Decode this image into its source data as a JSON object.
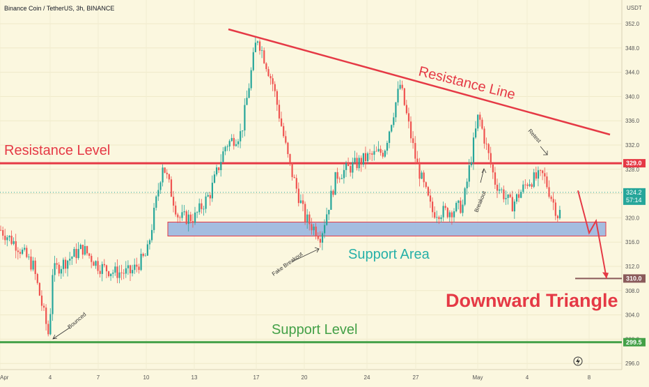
{
  "header": {
    "symbol_line": "Binance Coin / TetherUS, 3h, BINANCE",
    "currency": "USDT"
  },
  "annotations": {
    "resistance_line": "Resistance Line",
    "resistance_level": "Resistance Level",
    "support_area": "Support Area",
    "support_level": "Support Level",
    "downward_triangle": "Downward Triangle",
    "fake_breakout": "Fake Breakout",
    "bounced": "Bounced",
    "breakout": "Breakout",
    "retest": "Retest"
  },
  "price_tags": {
    "resistance": "329.0",
    "current": "324.2",
    "countdown": "57:14",
    "target": "310.0",
    "support": "299.5"
  },
  "footer": {
    "lightning_icon": "lightning-icon"
  },
  "colors": {
    "background": "#fbf7df",
    "up": "#26a69a",
    "down": "#ef5350",
    "resistance": "#e53945",
    "support": "#43a047",
    "support_area_fill": "#9ab6e0",
    "support_area_text": "#26b0a8",
    "target_line": "#8a5a5a"
  },
  "chart_data": {
    "type": "candlestick",
    "title": "Binance Coin / TetherUS, 3h, BINANCE",
    "y_unit": "USDT",
    "ylim": [
      295,
      353
    ],
    "y_ticks": [
      296.0,
      300.0,
      304.0,
      308.0,
      312.0,
      316.0,
      320.0,
      324.0,
      328.0,
      332.0,
      336.0,
      340.0,
      344.0,
      348.0,
      352.0
    ],
    "x_ticks": [
      "Apr",
      "4",
      "7",
      "10",
      "13",
      "17",
      "20",
      "24",
      "27",
      "May",
      "4",
      "8"
    ],
    "grid": true,
    "price_path": [
      {
        "t": "Apr 1",
        "price": 318
      },
      {
        "t": "Apr 2",
        "price": 315.5
      },
      {
        "t": "Apr 3",
        "price": 312
      },
      {
        "t": "Apr 4",
        "price": 300
      },
      {
        "t": "Apr 4",
        "price": 311
      },
      {
        "t": "Apr 6",
        "price": 315
      },
      {
        "t": "Apr 7",
        "price": 312
      },
      {
        "t": "Apr 8",
        "price": 311
      },
      {
        "t": "Apr 9",
        "price": 311
      },
      {
        "t": "Apr 10",
        "price": 314
      },
      {
        "t": "Apr 11",
        "price": 329
      },
      {
        "t": "Apr 12",
        "price": 320
      },
      {
        "t": "Apr 13",
        "price": 320
      },
      {
        "t": "Apr 14",
        "price": 324
      },
      {
        "t": "Apr 15",
        "price": 332
      },
      {
        "t": "Apr 16",
        "price": 334
      },
      {
        "t": "Apr 17",
        "price": 350
      },
      {
        "t": "Apr 18",
        "price": 342
      },
      {
        "t": "Apr 19",
        "price": 329
      },
      {
        "t": "Apr 20",
        "price": 320
      },
      {
        "t": "Apr 21",
        "price": 317
      },
      {
        "t": "Apr 22",
        "price": 327
      },
      {
        "t": "Apr 24",
        "price": 330
      },
      {
        "t": "Apr 25",
        "price": 331
      },
      {
        "t": "Apr 26",
        "price": 342
      },
      {
        "t": "Apr 27",
        "price": 329
      },
      {
        "t": "Apr 28",
        "price": 321
      },
      {
        "t": "Apr 29",
        "price": 321
      },
      {
        "t": "Apr 30",
        "price": 322
      },
      {
        "t": "May 1",
        "price": 337
      },
      {
        "t": "May 2",
        "price": 326
      },
      {
        "t": "May 3",
        "price": 322
      },
      {
        "t": "May 4",
        "price": 326
      },
      {
        "t": "May 5",
        "price": 327
      },
      {
        "t": "May 6",
        "price": 320
      },
      {
        "t": "May 6",
        "price": 322
      }
    ],
    "levels": [
      {
        "name": "Resistance Level",
        "price": 329.0
      },
      {
        "name": "Support Level",
        "price": 299.5
      },
      {
        "name": "Target",
        "price": 310.0
      }
    ],
    "support_area": {
      "from": 317.0,
      "to": 319.3
    },
    "resistance_line": {
      "from": {
        "t": "Apr 15",
        "price": 352.0
      },
      "to": {
        "t": "May 8",
        "price": 336.0
      }
    },
    "projection": [
      {
        "t": "May 6",
        "price": 324.5
      },
      {
        "t": "May 7",
        "price": 317.5
      },
      {
        "t": "May 7",
        "price": 319.5
      },
      {
        "t": "May 8",
        "price": 310.0
      }
    ],
    "current_price": 324.2
  }
}
